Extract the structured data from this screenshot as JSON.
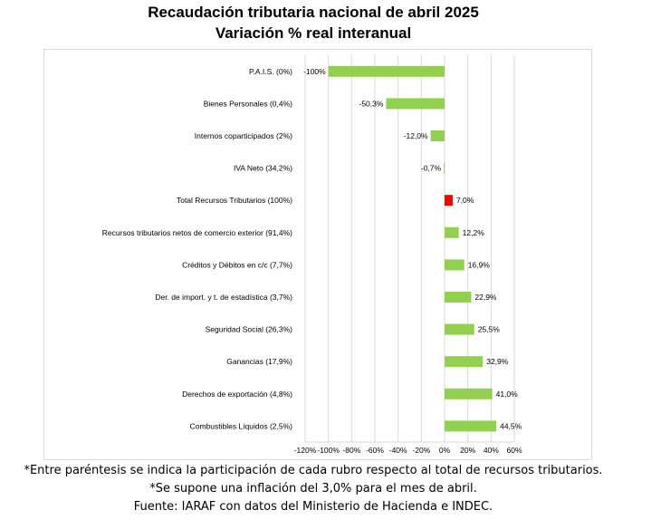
{
  "header": {
    "title": "Recaudación tributaria nacional de abril 2025",
    "subtitle": "Variación % real interanual"
  },
  "footnotes": {
    "participation": "*Entre paréntesis se indica la participación de cada rubro respecto al total de recursos tributarios.",
    "inflation": "*Se supone una inflación del 3,0% para el mes de abril.",
    "source": "Fuente: IARAF con datos del Ministerio de Hacienda e INDEC."
  },
  "colors": {
    "positive": "#92d050",
    "negative": "#92d050",
    "highlight": "#ff0000",
    "grid": "#d9d9d9"
  },
  "chart_data": {
    "type": "bar",
    "orientation": "horizontal",
    "categories": [
      "P.A.I.S. (0%)",
      "Bienes Personales (0,4%)",
      "Internos coparticipados (2%)",
      "IVA Neto (34,2%)",
      "Total Recursos Tributarios (100%)",
      "Recursos tributarios netos de comercio exterior (91,4%)",
      "Créditos y Débitos en c/c (7,7%)",
      "Der. de import. y t. de estadística (3,7%)",
      "Seguridad Social (26,3%)",
      "Ganancias (17,9%)",
      "Derechos de exportación (4,8%)",
      "Combustibles Líquidos (2,5%)"
    ],
    "values": [
      -100,
      -50.3,
      -12.0,
      -0.7,
      7.0,
      12.2,
      16.9,
      22.9,
      25.5,
      32.9,
      41.0,
      44.5
    ],
    "data_labels": [
      "-100%",
      "-50,3%",
      "-12,0%",
      "-0,7%",
      "7,0%",
      "12,2%",
      "16,9%",
      "22,9%",
      "25,5%",
      "32,9%",
      "41,0%",
      "44,5%"
    ],
    "highlight_category": "Total Recursos Tributarios (100%)",
    "xlim": [
      -120,
      60
    ],
    "x_ticks": [
      -120,
      -100,
      -80,
      -60,
      -40,
      -20,
      0,
      20,
      40,
      60
    ],
    "x_tick_labels": [
      "-120%",
      "-100%",
      "-80%",
      "-60%",
      "-40%",
      "-20%",
      "0%",
      "20%",
      "40%",
      "60%"
    ],
    "grid": true,
    "legend": false
  }
}
